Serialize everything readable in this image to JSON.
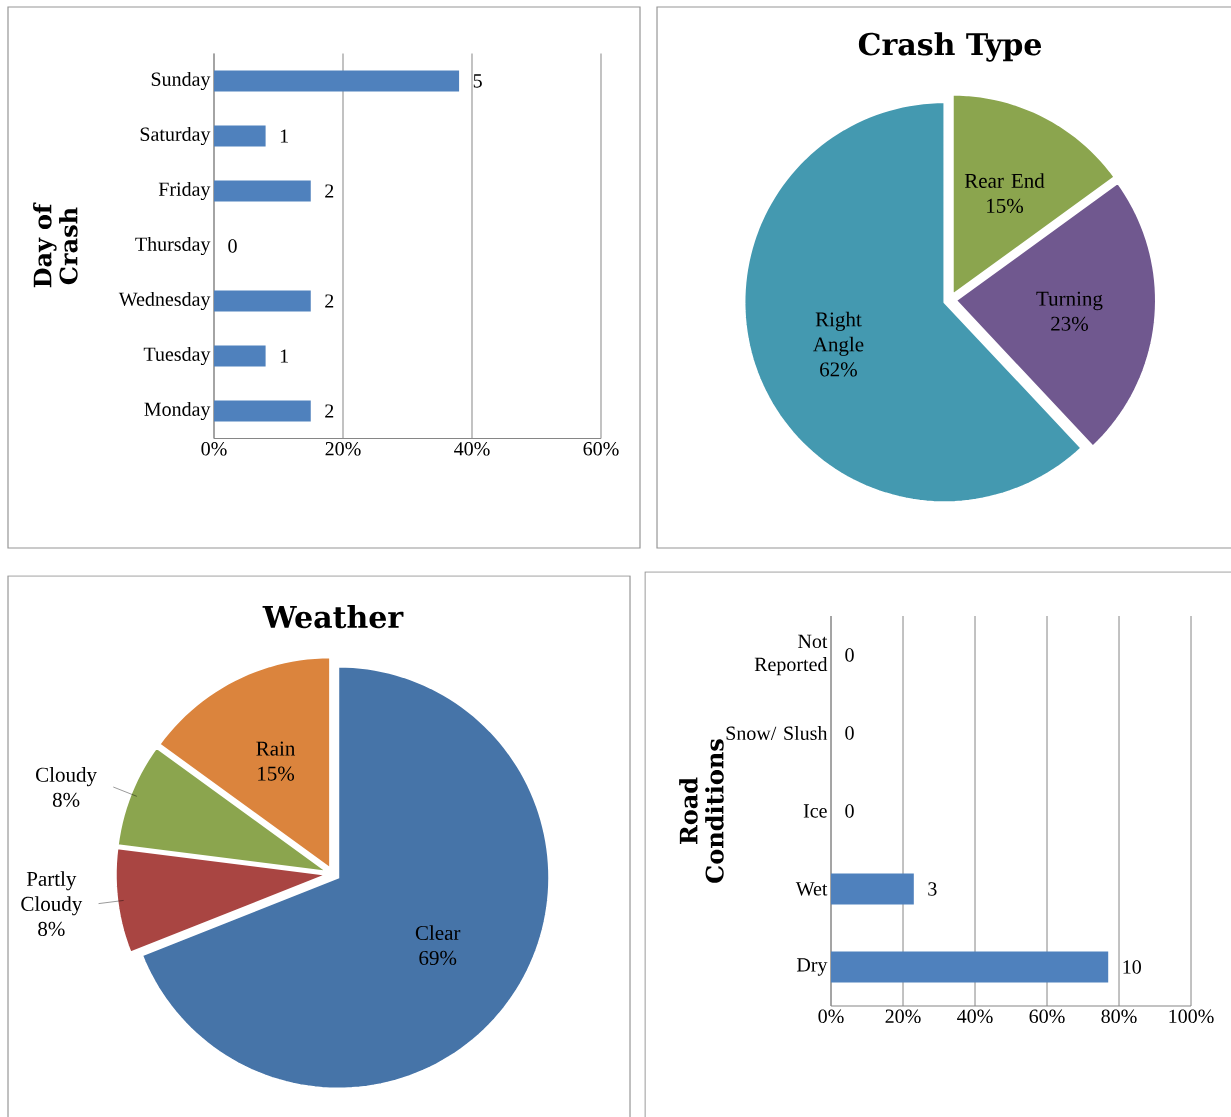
{
  "chart_data": [
    {
      "type": "bar",
      "orientation": "horizontal",
      "ylabel": "Day of Crash",
      "categories": [
        "Sunday",
        "Saturday",
        "Friday",
        "Thursday",
        "Wednesday",
        "Tuesday",
        "Monday"
      ],
      "values": [
        38,
        8,
        15,
        0,
        15,
        8,
        15
      ],
      "color": "#4f81bd",
      "xlim": [
        0,
        60
      ],
      "xticks": [
        {
          "value": 0,
          "label": "0%"
        },
        {
          "value": 20,
          "label": "20%"
        },
        {
          "value": 40,
          "label": "40%"
        },
        {
          "value": 60,
          "label": "60%"
        }
      ],
      "grid": "x",
      "annotations": [
        {
          "text": "5",
          "x": 38,
          "y": "Sunday"
        },
        {
          "text": "1",
          "x": 8,
          "y": "Saturday"
        },
        {
          "text": "2",
          "x": 15,
          "y": "Friday"
        },
        {
          "text": "0",
          "x": 0,
          "y": "Thursday"
        },
        {
          "text": "2",
          "x": 15,
          "y": "Wednesday"
        },
        {
          "text": "1",
          "x": 8,
          "y": "Tuesday"
        },
        {
          "text": "2",
          "x": 15,
          "y": "Monday"
        }
      ]
    },
    {
      "type": "pie",
      "title": "Crash Type",
      "categories": [
        "Rear End",
        "Turning",
        "Right Angle"
      ],
      "values": [
        15,
        23,
        62
      ],
      "value_labels": [
        "15%",
        "23%",
        "62%"
      ],
      "colors": [
        "#8ba54e",
        "#70588f",
        "#4499b0"
      ]
    },
    {
      "type": "pie",
      "title": "Weather",
      "categories": [
        "Clear",
        "Partly Cloudy",
        "Cloudy",
        "Rain"
      ],
      "values": [
        69,
        8,
        8,
        15
      ],
      "value_labels": [
        "69%",
        "8%",
        "8%",
        "15%"
      ],
      "colors": [
        "#4674a8",
        "#a94542",
        "#8ba54e",
        "#db843d"
      ]
    },
    {
      "type": "bar",
      "orientation": "horizontal",
      "ylabel": "Road Conditions",
      "categories": [
        "Not Reported",
        "Snow/ Slush",
        "Ice",
        "Wet",
        "Dry"
      ],
      "values": [
        0,
        0,
        0,
        23,
        77
      ],
      "color": "#4f81bd",
      "xlim": [
        0,
        100
      ],
      "xticks": [
        {
          "value": 0,
          "label": "0%"
        },
        {
          "value": 20,
          "label": "20%"
        },
        {
          "value": 40,
          "label": "40%"
        },
        {
          "value": 60,
          "label": "60%"
        },
        {
          "value": 80,
          "label": "80%"
        },
        {
          "value": 100,
          "label": "100%"
        }
      ],
      "grid": "x",
      "annotations": [
        {
          "text": "0",
          "x": 0,
          "y": "Not Reported"
        },
        {
          "text": "0",
          "x": 0,
          "y": "Snow/ Slush"
        },
        {
          "text": "0",
          "x": 0,
          "y": "Ice"
        },
        {
          "text": "3",
          "x": 23,
          "y": "Wet"
        },
        {
          "text": "10",
          "x": 77,
          "y": "Dry"
        }
      ]
    }
  ]
}
